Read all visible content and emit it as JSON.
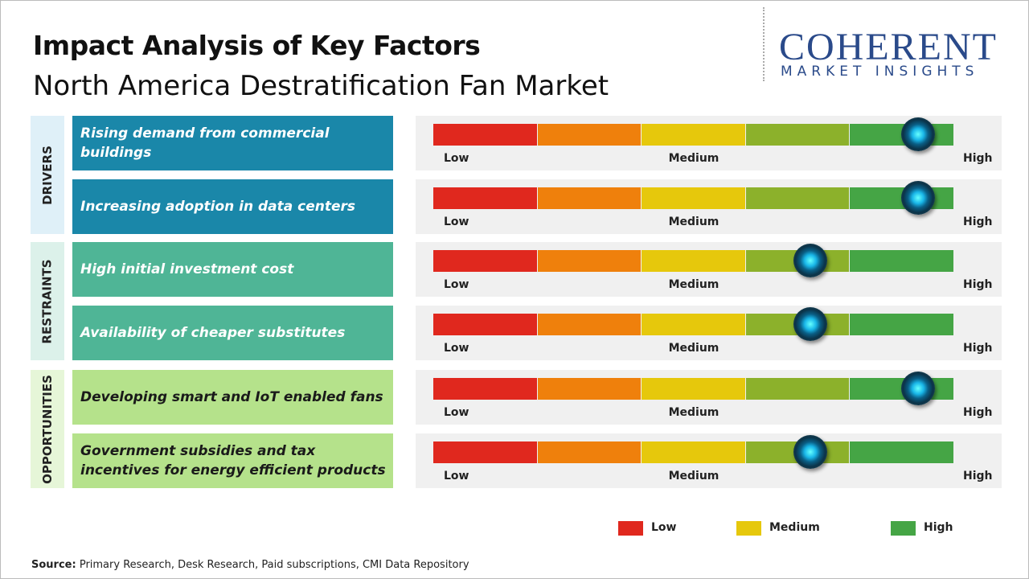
{
  "header": {
    "title": "Impact Analysis of Key Factors",
    "subtitle": "North America Destratification Fan Market"
  },
  "logo": {
    "name": "COHERENT",
    "tagline": "MARKET INSIGHTS"
  },
  "impact_lim": [
    0,
    5
  ],
  "scale_labels": [
    "Low",
    "Medium",
    "High"
  ],
  "segment_colors": [
    "#e0281e",
    "#ef800c",
    "#e6c80c",
    "#8cb12b",
    "#45a545"
  ],
  "groups": [
    {
      "name": "DRIVERS",
      "color": "#1a87a9",
      "panel_color": "#dff0f8",
      "text_color": "#ffffff",
      "factors": [
        {
          "label": "Rising demand from commercial buildings",
          "impact": 4.65
        },
        {
          "label": "Increasing adoption in data centers",
          "impact": 4.65
        }
      ]
    },
    {
      "name": "RESTRAINTS",
      "color": "#4fb596",
      "panel_color": "#dcf1ea",
      "text_color": "#ffffff",
      "factors": [
        {
          "label": "High initial investment cost",
          "impact": 3.62
        },
        {
          "label": "Availability of cheaper substitutes",
          "impact": 3.62
        }
      ]
    },
    {
      "name": "OPPORTUNITIES",
      "color": "#b5e28b",
      "panel_color": "#e6f6d8",
      "text_color": "#1a1a1a",
      "factors": [
        {
          "label": "Developing smart and IoT enabled fans",
          "impact": 4.65
        },
        {
          "label": "Government subsidies and tax incentives for energy efficient products",
          "impact": 3.62
        }
      ]
    }
  ],
  "legend": [
    {
      "label": "Low",
      "color": "#e0281e"
    },
    {
      "label": "Medium",
      "color": "#e6c80c"
    },
    {
      "label": "High",
      "color": "#45a545"
    }
  ],
  "source": {
    "label": "Source:",
    "text": "Primary Research, Desk Research, Paid subscriptions, CMI Data Repository"
  }
}
